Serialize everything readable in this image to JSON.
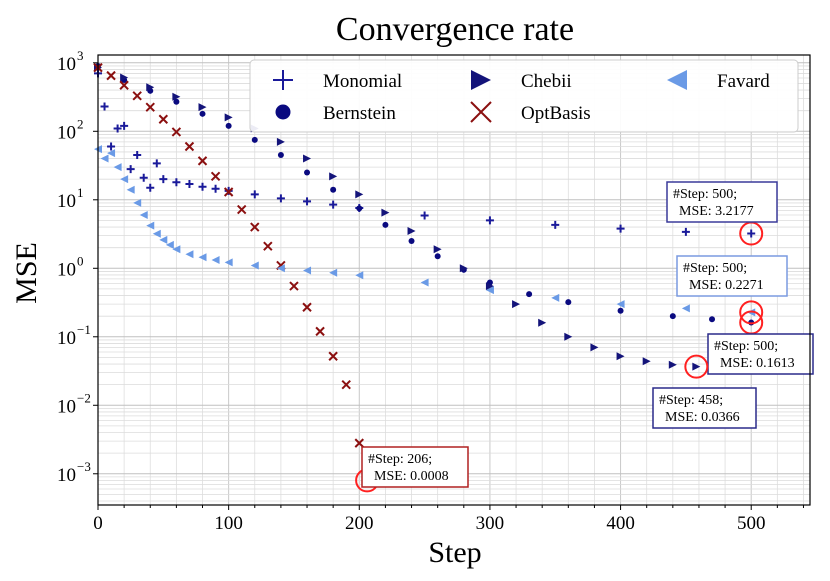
{
  "chart_data": {
    "type": "scatter",
    "title": "Convergence rate",
    "xlabel": "Step",
    "ylabel": "MSE",
    "xlim": [
      0,
      545
    ],
    "ylim": [
      0.00035,
      1300
    ],
    "yscale": "log",
    "grid": true,
    "legend_position": "top-right",
    "x_ticks": [
      0,
      100,
      200,
      300,
      400,
      500
    ],
    "y_ticks": [
      {
        "value": 0.001,
        "base": "10",
        "exp": "−3"
      },
      {
        "value": 0.01,
        "base": "10",
        "exp": "−2"
      },
      {
        "value": 0.1,
        "base": "10",
        "exp": "−1"
      },
      {
        "value": 1,
        "base": "10",
        "exp": "0"
      },
      {
        "value": 10,
        "base": "10",
        "exp": "1"
      },
      {
        "value": 100,
        "base": "10",
        "exp": "2"
      },
      {
        "value": 1000,
        "base": "10",
        "exp": "3"
      }
    ],
    "series": [
      {
        "name": "Monomial",
        "marker": "plus",
        "color": "#1a1a9a",
        "x": [
          0,
          5,
          10,
          15,
          20,
          25,
          30,
          35,
          40,
          45,
          50,
          60,
          70,
          80,
          90,
          100,
          120,
          140,
          160,
          180,
          200,
          250,
          300,
          350,
          400,
          450,
          500
        ],
        "y": [
          700,
          230,
          60,
          110,
          120,
          28,
          45,
          21,
          15,
          34,
          20,
          18,
          17,
          15.5,
          14.5,
          13.5,
          12,
          10.5,
          9.5,
          8.5,
          7.6,
          5.9,
          5.0,
          4.3,
          3.8,
          3.4,
          3.2177
        ]
      },
      {
        "name": "Bernstein",
        "marker": "dot",
        "color": "#0a0a80",
        "x": [
          0,
          20,
          40,
          60,
          80,
          100,
          120,
          140,
          160,
          180,
          200,
          220,
          240,
          260,
          280,
          300,
          330,
          360,
          400,
          440,
          470,
          500
        ],
        "y": [
          900,
          560,
          390,
          270,
          180,
          120,
          75,
          45,
          25,
          14,
          7.5,
          4.3,
          2.5,
          1.5,
          0.95,
          0.62,
          0.42,
          0.32,
          0.24,
          0.2,
          0.18,
          0.1613
        ]
      },
      {
        "name": "Chebii",
        "marker": "triangle-right",
        "color": "#14147a",
        "x": [
          0,
          20,
          40,
          60,
          80,
          100,
          120,
          140,
          160,
          180,
          200,
          220,
          240,
          260,
          280,
          300,
          320,
          340,
          360,
          380,
          400,
          420,
          440,
          458
        ],
        "y": [
          850,
          610,
          440,
          320,
          225,
          160,
          110,
          70,
          40,
          22,
          12,
          6.5,
          3.5,
          1.9,
          1.0,
          0.55,
          0.3,
          0.16,
          0.1,
          0.07,
          0.052,
          0.044,
          0.039,
          0.0366
        ]
      },
      {
        "name": "OptBasis",
        "marker": "x",
        "color": "#8b1010",
        "x": [
          0,
          10,
          20,
          30,
          40,
          50,
          60,
          70,
          80,
          90,
          100,
          110,
          120,
          130,
          140,
          150,
          160,
          170,
          180,
          190,
          200,
          206
        ],
        "y": [
          850,
          650,
          470,
          330,
          225,
          150,
          98,
          60,
          37,
          22,
          13,
          7.2,
          4.0,
          2.1,
          1.1,
          0.55,
          0.27,
          0.12,
          0.052,
          0.02,
          0.0028,
          0.0008
        ]
      },
      {
        "name": "Favard",
        "marker": "triangle-left",
        "color": "#6a9ae6",
        "x": [
          0,
          5,
          10,
          15,
          20,
          25,
          30,
          35,
          40,
          45,
          50,
          55,
          60,
          70,
          80,
          90,
          100,
          120,
          140,
          160,
          180,
          200,
          250,
          300,
          350,
          400,
          450,
          500
        ],
        "y": [
          55,
          40,
          48,
          30,
          20,
          14,
          9,
          6,
          4.2,
          3.2,
          2.6,
          2.2,
          1.9,
          1.6,
          1.45,
          1.32,
          1.22,
          1.1,
          1.0,
          0.93,
          0.86,
          0.79,
          0.62,
          0.48,
          0.37,
          0.3,
          0.26,
          0.2271
        ]
      }
    ],
    "annotations": [
      {
        "x": 500,
        "y": 3.2177,
        "line1": "#Step: 500;",
        "line2": "MSE: 3.2177",
        "color": "#3a3a9a"
      },
      {
        "x": 500,
        "y": 0.2271,
        "line1": "#Step: 500;",
        "line2": "MSE: 0.2271",
        "color": "#7a9ae0"
      },
      {
        "x": 500,
        "y": 0.1613,
        "line1": "#Step: 500;",
        "line2": "MSE: 0.1613",
        "color": "#2a2a8a"
      },
      {
        "x": 458,
        "y": 0.0366,
        "line1": "#Step: 458;",
        "line2": "MSE: 0.0366",
        "color": "#2a2a8a"
      },
      {
        "x": 206,
        "y": 0.0008,
        "line1": "#Step: 206;",
        "line2": "MSE: 0.0008",
        "color": "#b02020"
      }
    ],
    "highlight_color": "#ff2020"
  }
}
